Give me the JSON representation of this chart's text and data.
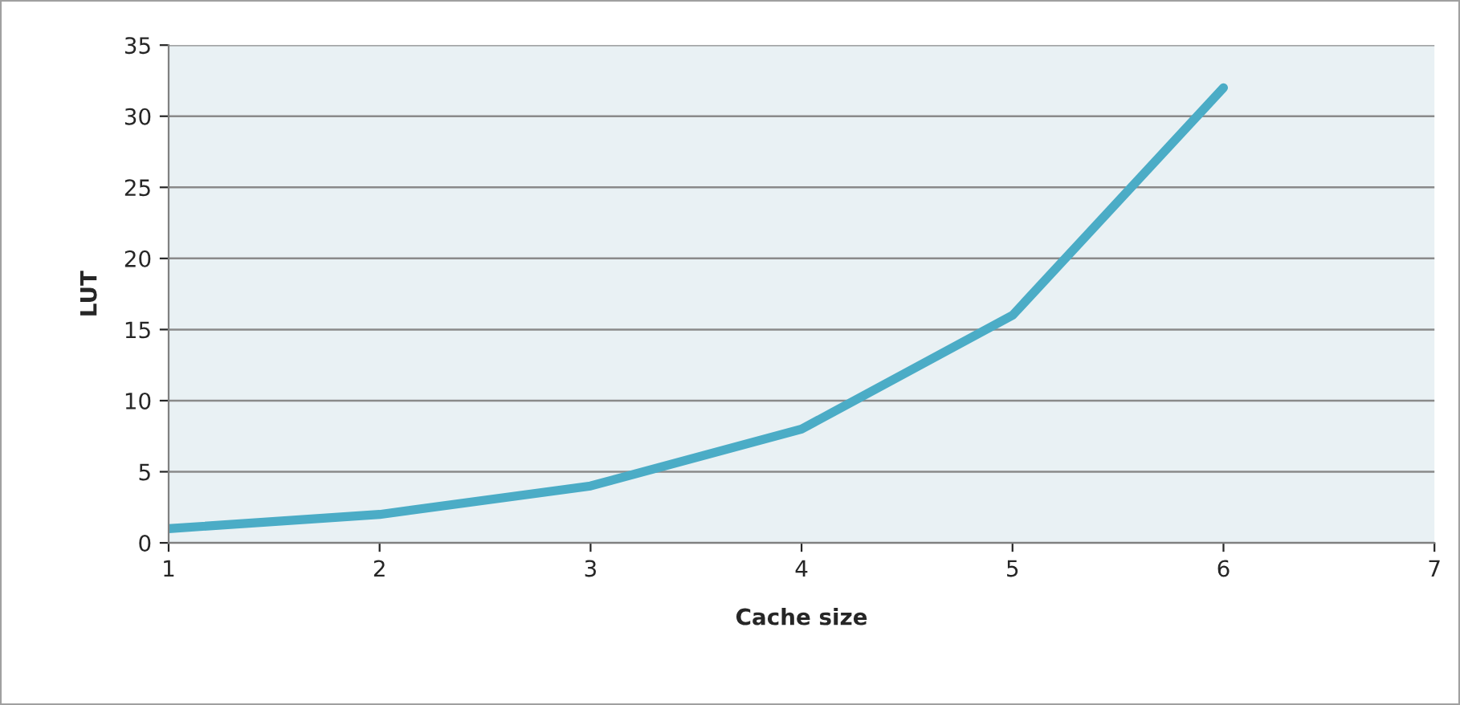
{
  "chart_data": {
    "type": "line",
    "xlabel": "Cache size",
    "ylabel": "LUT",
    "x": [
      1,
      2,
      3,
      4,
      5,
      6
    ],
    "series": [
      {
        "color": "#4bacc6",
        "values": [
          1,
          2,
          4,
          8,
          16,
          32
        ]
      }
    ],
    "xlim": [
      1,
      7
    ],
    "xticks": [
      1,
      2,
      3,
      4,
      5,
      6,
      7
    ],
    "ylim": [
      0,
      35
    ],
    "yticks": [
      0,
      5,
      10,
      15,
      20,
      25,
      30,
      35
    ],
    "grid": "y",
    "legend": false,
    "marker": "none",
    "line_style": "solid"
  }
}
